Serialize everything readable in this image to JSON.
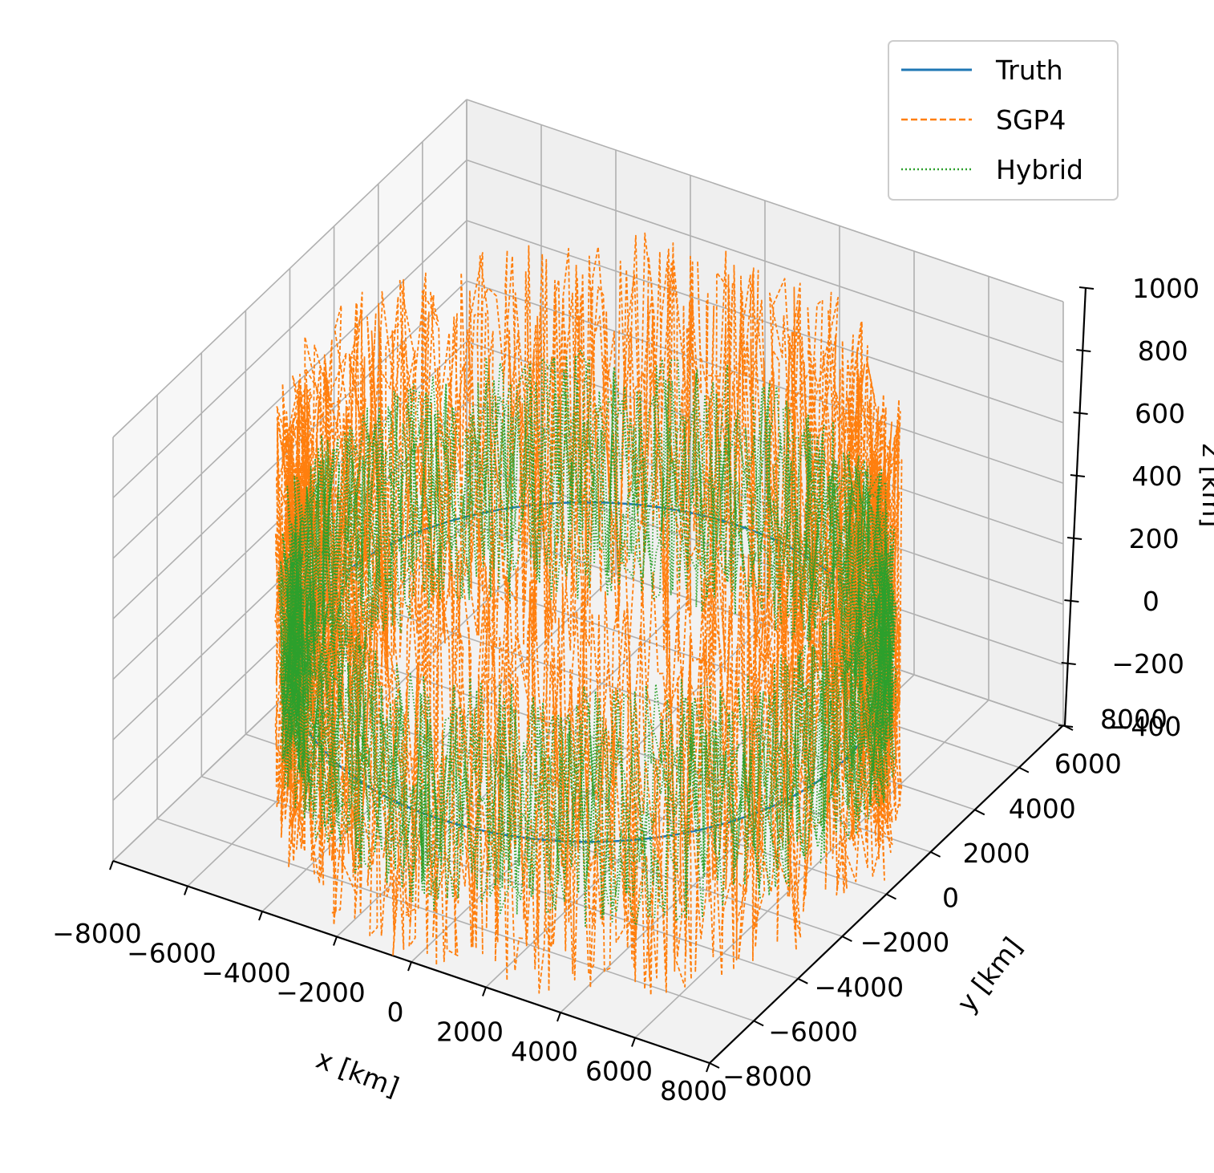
{
  "chart_data": {
    "type": "line",
    "projection": "3d",
    "title": "",
    "xlabel": "x [km]",
    "ylabel": "y [km]",
    "zlabel": "z [km]",
    "xlim": [
      -8000,
      8000
    ],
    "ylim": [
      -8000,
      8000
    ],
    "zlim": [
      -400,
      1000
    ],
    "xticks": [
      "−8000",
      "−6000",
      "−4000",
      "−2000",
      "0",
      "2000",
      "4000",
      "6000",
      "8000"
    ],
    "yticks": [
      "−8000",
      "−6000",
      "−4000",
      "−2000",
      "0",
      "2000",
      "4000",
      "6000",
      "8000"
    ],
    "zticks": [
      "−400",
      "−200",
      "0",
      "200",
      "400",
      "600",
      "800",
      "1000"
    ],
    "grid": true,
    "legend_position": "top-right",
    "orbit": {
      "shape": "circular ring in the x-y plane",
      "x_range": [
        -6900,
        6900
      ],
      "y_range": [
        -6900,
        6900
      ],
      "z_center": 0,
      "truth_z_spread": 0,
      "sgp4_z_spread": [
        -500,
        900
      ],
      "hybrid_z_spread": [
        -300,
        500
      ]
    },
    "series": [
      {
        "name": "Truth",
        "color": "#1f77b4",
        "style": "solid"
      },
      {
        "name": "SGP4",
        "color": "#ff7f0e",
        "style": "dashed"
      },
      {
        "name": "Hybrid",
        "color": "#2ca02c",
        "style": "dotted"
      }
    ]
  }
}
